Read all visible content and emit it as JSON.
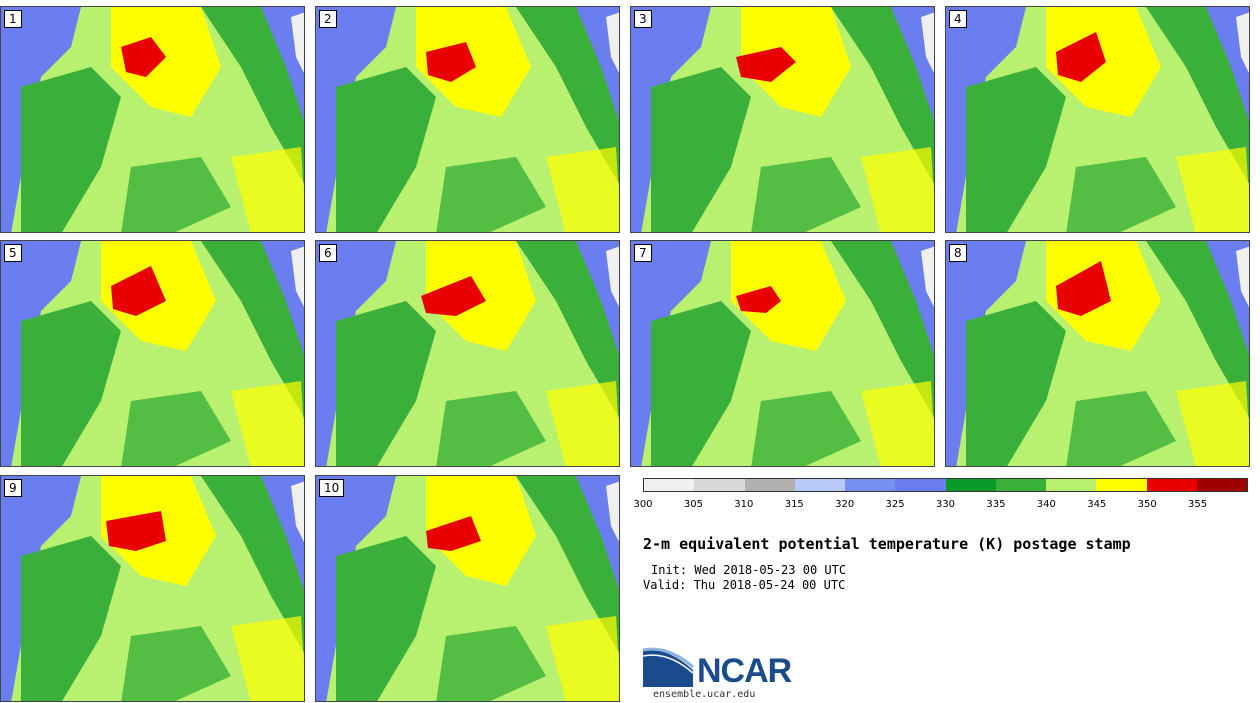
{
  "panels": [
    {
      "label": "1"
    },
    {
      "label": "2"
    },
    {
      "label": "3"
    },
    {
      "label": "4"
    },
    {
      "label": "5"
    },
    {
      "label": "6"
    },
    {
      "label": "7"
    },
    {
      "label": "8"
    },
    {
      "label": "9"
    },
    {
      "label": "10"
    }
  ],
  "colorbar": {
    "colors": [
      "#f0f0f0",
      "#d8d8d8",
      "#b0b0b0",
      "#b8c8f8",
      "#7890f0",
      "#6a7ef0",
      "#0a9a2a",
      "#3ab03a",
      "#b8f070",
      "#ffff00",
      "#e80000",
      "#a00000"
    ],
    "ticks": [
      "300",
      "305",
      "310",
      "315",
      "320",
      "325",
      "330",
      "335",
      "340",
      "345",
      "350",
      "355"
    ]
  },
  "title": "2-m equivalent potential temperature (K) postage stamp",
  "init": "Init: Wed 2018-05-23 00 UTC",
  "valid": "Valid: Thu 2018-05-24 00 UTC",
  "logo": {
    "text": "NCAR",
    "url": "ensemble.ucar.edu"
  }
}
